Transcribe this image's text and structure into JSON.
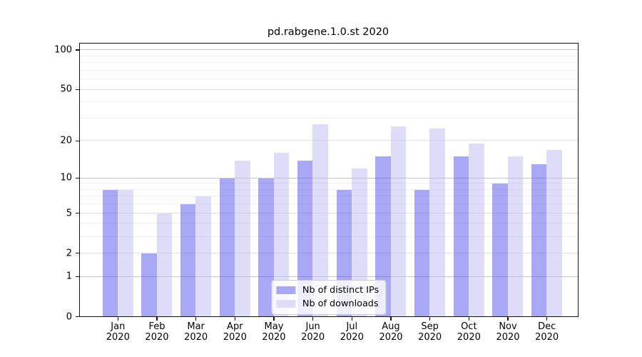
{
  "title": "pd.rabgene.1.0.st 2020",
  "chart_data": {
    "type": "bar",
    "title": "pd.rabgene.1.0.st 2020",
    "categories": [
      "Jan",
      "Feb",
      "Mar",
      "Apr",
      "May",
      "Jun",
      "Jul",
      "Aug",
      "Sep",
      "Oct",
      "Nov",
      "Dec"
    ],
    "category_year": "2020",
    "series": [
      {
        "name": "Nb of distinct IPs",
        "fill": "rgba(82,82,238,0.5)",
        "legend_color": "#a8a8f6",
        "values": [
          8,
          2,
          6,
          10,
          10,
          14,
          8,
          15,
          8,
          15,
          9,
          13
        ]
      },
      {
        "name": "Nb of downloads",
        "fill": "rgba(187,187,241,0.5)",
        "legend_color": "#ddddf8",
        "values": [
          8,
          5,
          7,
          14,
          16,
          27,
          12,
          26,
          25,
          19,
          15,
          17
        ]
      }
    ],
    "xlabel": "",
    "ylabel": "",
    "yscale": "log1p",
    "ylim": [
      0,
      110
    ],
    "yticks": [
      100,
      50,
      20,
      10,
      5,
      2,
      1,
      0
    ],
    "decade_gridlines": [
      1,
      10,
      100
    ],
    "mid_gridlines": [
      2,
      5,
      20,
      50
    ],
    "minor_gridlines": [
      3,
      4,
      6,
      7,
      8,
      9,
      30,
      40,
      60,
      70,
      80,
      90
    ],
    "grid_on": true,
    "legend_position": "lower center"
  }
}
